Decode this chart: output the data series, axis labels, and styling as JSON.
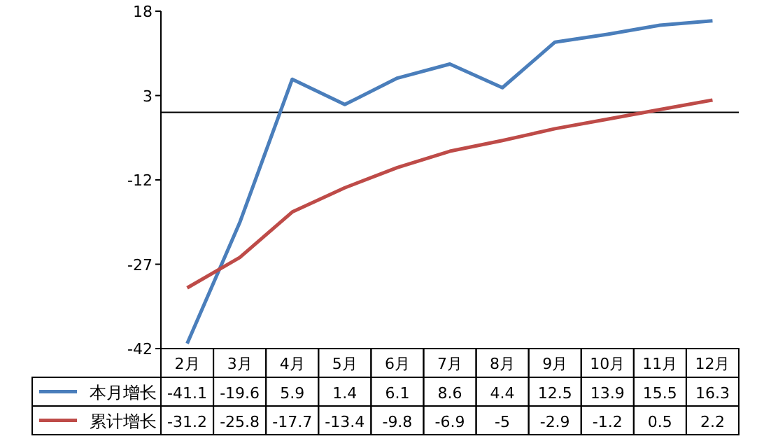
{
  "chart_data": {
    "type": "line",
    "categories": [
      "2月",
      "3月",
      "4月",
      "5月",
      "6月",
      "7月",
      "8月",
      "9月",
      "10月",
      "11月",
      "12月"
    ],
    "series": [
      {
        "name": "本月增长",
        "color": "#4a7ebb",
        "values": [
          -41.1,
          -19.6,
          5.9,
          1.4,
          6.1,
          8.6,
          4.4,
          12.5,
          13.9,
          15.5,
          16.3
        ]
      },
      {
        "name": "累计增长",
        "color": "#be4b48",
        "values": [
          -31.2,
          -25.8,
          -17.7,
          -13.4,
          -9.8,
          -6.9,
          -5,
          -2.9,
          -1.2,
          0.5,
          2.2
        ]
      }
    ],
    "ylim": [
      -42,
      18
    ],
    "yticks": [
      -42,
      -27,
      -12,
      3,
      18
    ],
    "ref_lines": [
      {
        "axis": "y",
        "value": 0,
        "color": "#000000"
      }
    ],
    "data_labels": true,
    "legend": "bottom",
    "grid": false,
    "marker": "none",
    "line_style": "solid"
  }
}
